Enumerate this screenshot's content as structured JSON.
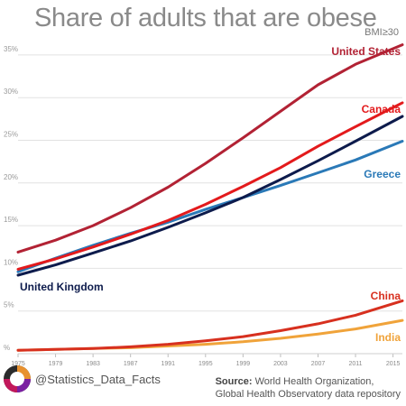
{
  "header": {
    "title": "Share of adults that are obese",
    "subtitle": "BMI≥30"
  },
  "footer": {
    "handle": "@Statistics_Data_Facts",
    "source_label": "Source:",
    "source_text": "World Health Organization,",
    "source_text2": "Global Health Observatory data repository"
  },
  "chart_data": {
    "type": "line",
    "title": "Share of adults that are obese",
    "subtitle": "BMI≥30",
    "xlim": [
      1975,
      2016
    ],
    "ylim": [
      0,
      37
    ],
    "x_ticks": [
      1975,
      1979,
      1983,
      1987,
      1991,
      1995,
      1999,
      2003,
      2007,
      2011,
      2015
    ],
    "y_ticks": [
      0,
      5,
      10,
      15,
      20,
      25,
      30,
      35
    ],
    "y_tick_labels": [
      "%",
      "5%",
      "10%",
      "15%",
      "20%",
      "25%",
      "30%",
      "35%"
    ],
    "grid": true,
    "series": [
      {
        "name": "United States",
        "color": "#b22234",
        "x": [
          1975,
          1979,
          1983,
          1987,
          1991,
          1995,
          1999,
          2003,
          2007,
          2011,
          2016
        ],
        "y": [
          11.9,
          13.3,
          15.0,
          17.1,
          19.5,
          22.3,
          25.3,
          28.4,
          31.5,
          33.9,
          36.2
        ]
      },
      {
        "name": "Canada",
        "color": "#e31a1c",
        "x": [
          1975,
          1979,
          1983,
          1987,
          1991,
          1995,
          1999,
          2003,
          2007,
          2011,
          2016
        ],
        "y": [
          9.9,
          11.1,
          12.5,
          14.0,
          15.6,
          17.5,
          19.6,
          21.8,
          24.3,
          26.6,
          29.4
        ]
      },
      {
        "name": "Greece",
        "color": "#2a79b7",
        "x": [
          1975,
          1979,
          1983,
          1987,
          1991,
          1995,
          1999,
          2003,
          2007,
          2011,
          2016
        ],
        "y": [
          9.6,
          11.2,
          12.7,
          14.1,
          15.4,
          16.9,
          18.3,
          19.7,
          21.2,
          22.7,
          24.9
        ]
      },
      {
        "name": "United Kingdom",
        "color": "#0d1b4c",
        "x": [
          1975,
          1979,
          1983,
          1987,
          1991,
          1995,
          1999,
          2003,
          2007,
          2011,
          2016
        ],
        "y": [
          9.2,
          10.4,
          11.8,
          13.2,
          14.8,
          16.5,
          18.3,
          20.4,
          22.6,
          24.9,
          27.8
        ]
      },
      {
        "name": "China",
        "color": "#d7301f",
        "x": [
          1975,
          1979,
          1983,
          1987,
          1991,
          1995,
          1999,
          2003,
          2007,
          2011,
          2016
        ],
        "y": [
          0.4,
          0.5,
          0.6,
          0.8,
          1.1,
          1.5,
          2.0,
          2.7,
          3.5,
          4.5,
          6.2
        ]
      },
      {
        "name": "India",
        "color": "#f0a33a",
        "x": [
          1975,
          1979,
          1983,
          1987,
          1991,
          1995,
          1999,
          2003,
          2007,
          2011,
          2016
        ],
        "y": [
          0.4,
          0.5,
          0.6,
          0.7,
          0.9,
          1.1,
          1.4,
          1.8,
          2.3,
          2.9,
          3.9
        ]
      }
    ]
  }
}
